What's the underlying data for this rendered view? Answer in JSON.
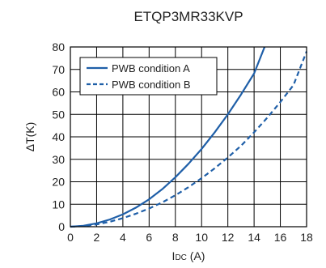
{
  "chart_data": {
    "type": "line",
    "title": "ETQP3MR33KVP",
    "xlabel_main": "I",
    "xlabel_sub": "DC",
    "xlabel_unit": " (A)",
    "ylabel": "ΔT(K)",
    "xlim": [
      0,
      18
    ],
    "ylim": [
      0,
      80
    ],
    "xticks": [
      0,
      2,
      4,
      6,
      8,
      10,
      12,
      14,
      16,
      18
    ],
    "yticks": [
      0,
      10,
      20,
      30,
      40,
      50,
      60,
      70,
      80
    ],
    "grid": true,
    "legend_position": "top-left",
    "series": [
      {
        "name": "PWB condition A",
        "style": "solid",
        "color": "#1f5fa8",
        "x": [
          0,
          1,
          2,
          3,
          4,
          5,
          6,
          7,
          8,
          9,
          10,
          11,
          12,
          13,
          14,
          14.8
        ],
        "y": [
          0,
          0.4,
          1.5,
          3.2,
          5.5,
          8.5,
          12.2,
          16.7,
          22,
          28,
          34.6,
          42,
          50,
          58.8,
          68.2,
          80
        ]
      },
      {
        "name": "PWB condition B",
        "style": "dashed",
        "color": "#1f5fa8",
        "x": [
          0,
          1,
          2,
          3,
          4,
          5,
          6,
          7,
          8,
          9,
          10,
          11,
          12,
          13,
          14,
          15,
          16,
          17,
          18
        ],
        "y": [
          0,
          0.3,
          1,
          2.2,
          3.8,
          5.8,
          8.1,
          10.8,
          14,
          17.6,
          21.6,
          26,
          30.8,
          36,
          42,
          48.5,
          55.5,
          63,
          78
        ]
      }
    ]
  }
}
